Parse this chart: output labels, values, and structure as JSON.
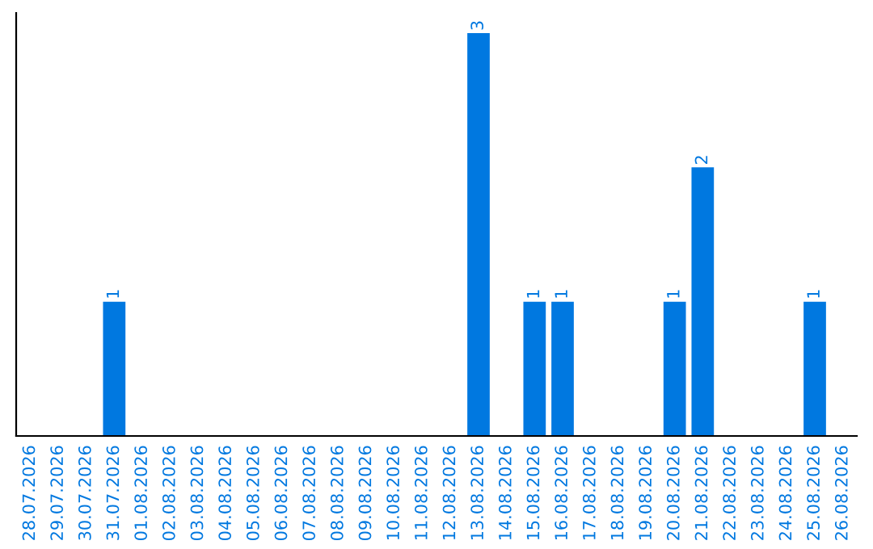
{
  "chart_data": {
    "type": "bar",
    "categories": [
      "28.07.2026",
      "29.07.2026",
      "30.07.2026",
      "31.07.2026",
      "01.08.2026",
      "02.08.2026",
      "03.08.2026",
      "04.08.2026",
      "05.08.2026",
      "06.08.2026",
      "07.08.2026",
      "08.08.2026",
      "09.08.2026",
      "10.08.2026",
      "11.08.2026",
      "12.08.2026",
      "13.08.2026",
      "14.08.2026",
      "15.08.2026",
      "16.08.2026",
      "17.08.2026",
      "18.08.2026",
      "19.08.2026",
      "20.08.2026",
      "21.08.2026",
      "22.08.2026",
      "23.08.2026",
      "24.08.2026",
      "25.08.2026",
      "26.08.2026"
    ],
    "values": [
      0,
      0,
      0,
      1,
      0,
      0,
      0,
      0,
      0,
      0,
      0,
      0,
      0,
      0,
      0,
      0,
      3,
      0,
      1,
      1,
      0,
      0,
      0,
      1,
      2,
      0,
      0,
      0,
      1,
      0
    ],
    "value_labels": [
      null,
      null,
      null,
      "1",
      null,
      null,
      null,
      null,
      null,
      null,
      null,
      null,
      null,
      null,
      null,
      null,
      "3",
      null,
      "1",
      "1",
      null,
      null,
      null,
      "1",
      "2",
      null,
      null,
      null,
      "1",
      null
    ],
    "color": "#0078e0",
    "tick_labels": "x",
    "grid": false,
    "legend": false
  }
}
